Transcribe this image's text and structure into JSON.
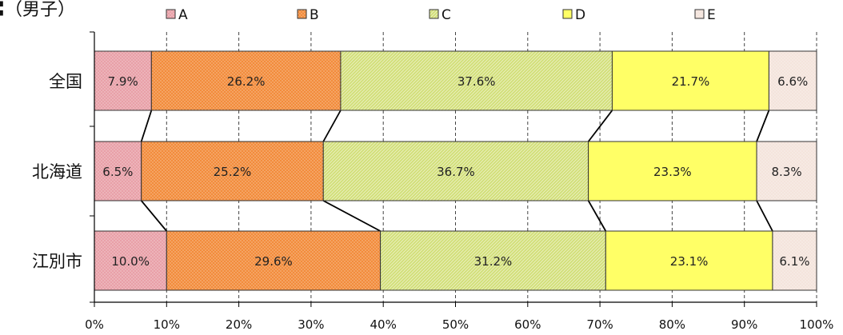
{
  "title": "〓（男子）",
  "chart_data": {
    "type": "bar",
    "stacked": true,
    "orientation": "horizontal",
    "categories": [
      "全国",
      "北海道",
      "江別市"
    ],
    "series": [
      {
        "name": "A",
        "values": [
          7.9,
          6.5,
          10.0
        ],
        "labels": [
          "7.9%",
          "6.5%",
          "10.0%"
        ],
        "color": "#e8a0a8",
        "pattern": "dots"
      },
      {
        "name": "B",
        "values": [
          26.2,
          25.2,
          29.6
        ],
        "labels": [
          "26.2%",
          "25.2%",
          "29.6%"
        ],
        "color": "#f28c3c",
        "pattern": "dense"
      },
      {
        "name": "C",
        "values": [
          37.6,
          36.7,
          31.2
        ],
        "labels": [
          "37.6%",
          "36.7%",
          "31.2%"
        ],
        "color": "#d2df78",
        "pattern": "diagonal"
      },
      {
        "name": "D",
        "values": [
          21.7,
          23.3,
          23.1
        ],
        "labels": [
          "21.7%",
          "23.3%",
          "23.1%"
        ],
        "color": "#ffff66",
        "pattern": "solid"
      },
      {
        "name": "E",
        "values": [
          6.6,
          8.3,
          6.1
        ],
        "labels": [
          "6.6%",
          "8.3%",
          "6.1%"
        ],
        "color": "#f4e4dc",
        "pattern": "dots"
      }
    ],
    "x_ticks": [
      "0%",
      "10%",
      "20%",
      "30%",
      "40%",
      "50%",
      "60%",
      "70%",
      "80%",
      "90%",
      "100%"
    ],
    "xlim": [
      0,
      100
    ],
    "grid": "vertical-dashed",
    "legend": "top",
    "series_lines": true
  }
}
